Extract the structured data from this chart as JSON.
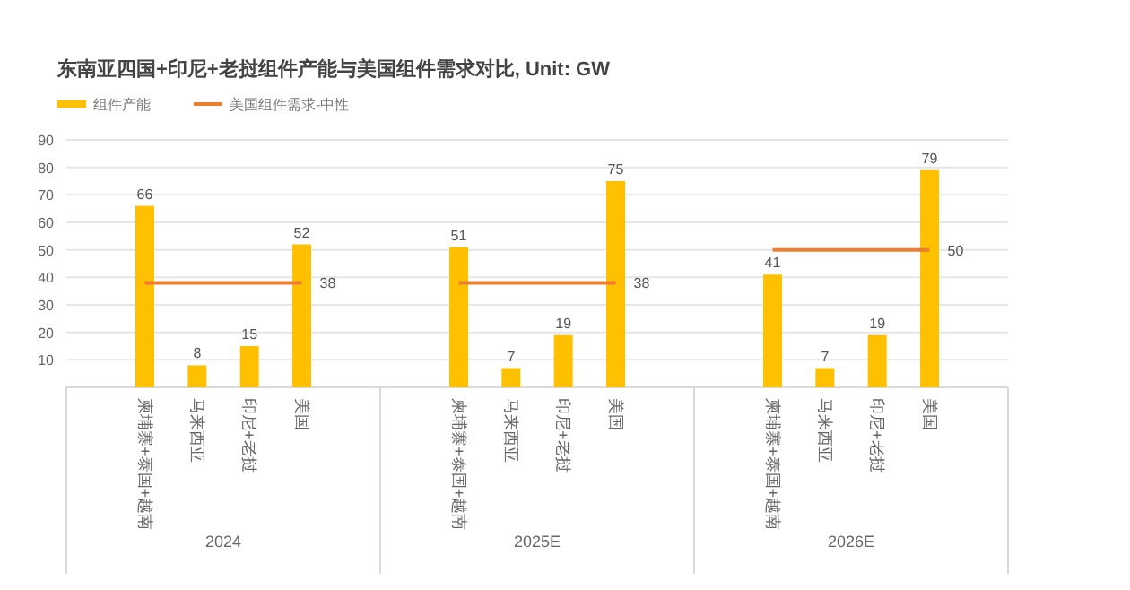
{
  "chart_data": [
    {
      "type": "bar",
      "title": "东南亚四国+印尼+老挝组件产能与美国组件需求对比, Unit: GW",
      "xlabel": "2024",
      "categories": [
        "柬埔寨+泰国+越南",
        "马来西亚",
        "印尼+老挝",
        "美国"
      ],
      "series": [
        {
          "name": "组件产能",
          "color": "#ffc000",
          "values": [
            66,
            8,
            15,
            52
          ],
          "data_labels": true
        },
        {
          "name": "美国组件需求-中性",
          "type": "line",
          "color": "#ed7d31",
          "values": [
            38,
            38,
            38,
            38
          ],
          "value_labels": [
            null,
            null,
            null,
            "38"
          ]
        }
      ],
      "ylim": [
        0,
        90
      ],
      "yticks": [
        10,
        20,
        30,
        40,
        50,
        60,
        70,
        80,
        90
      ],
      "grid": "y",
      "legend": "top left",
      "marker": "none"
    },
    {
      "type": "bar",
      "xlabel": "2025E",
      "categories": [
        "柬埔寨+泰国+越南",
        "马来西亚",
        "印尼+老挝",
        "美国"
      ],
      "series": [
        {
          "color": "#ffc000",
          "values": [
            51,
            7,
            19,
            75
          ],
          "data_labels": true
        },
        {
          "type": "line",
          "color": "#ed7d31",
          "values": [
            38,
            38,
            38,
            38
          ],
          "value_labels": [
            null,
            null,
            null,
            "38"
          ]
        }
      ],
      "ylim": [
        0,
        90
      ],
      "yticks": [
        10,
        20,
        30,
        40,
        50,
        60,
        70,
        80,
        90
      ],
      "grid": "y",
      "tick_labels": "x",
      "marker": "none"
    },
    {
      "type": "bar",
      "xlabel": "2026E",
      "categories": [
        "柬埔寨+泰国+越南",
        "马来西亚",
        "印尼+老挝",
        "美国"
      ],
      "series": [
        {
          "color": "#ffc000",
          "values": [
            41,
            7,
            19,
            79
          ],
          "data_labels": true
        },
        {
          "type": "line",
          "color": "#ed7d31",
          "values": [
            50,
            50,
            50,
            50
          ],
          "value_labels": [
            null,
            null,
            null,
            "50"
          ]
        }
      ],
      "ylim": [
        0,
        90
      ],
      "yticks": [
        10,
        20,
        30,
        40,
        50,
        60,
        70,
        80,
        90
      ],
      "grid": "y",
      "tick_labels": "x",
      "marker": "none"
    }
  ]
}
